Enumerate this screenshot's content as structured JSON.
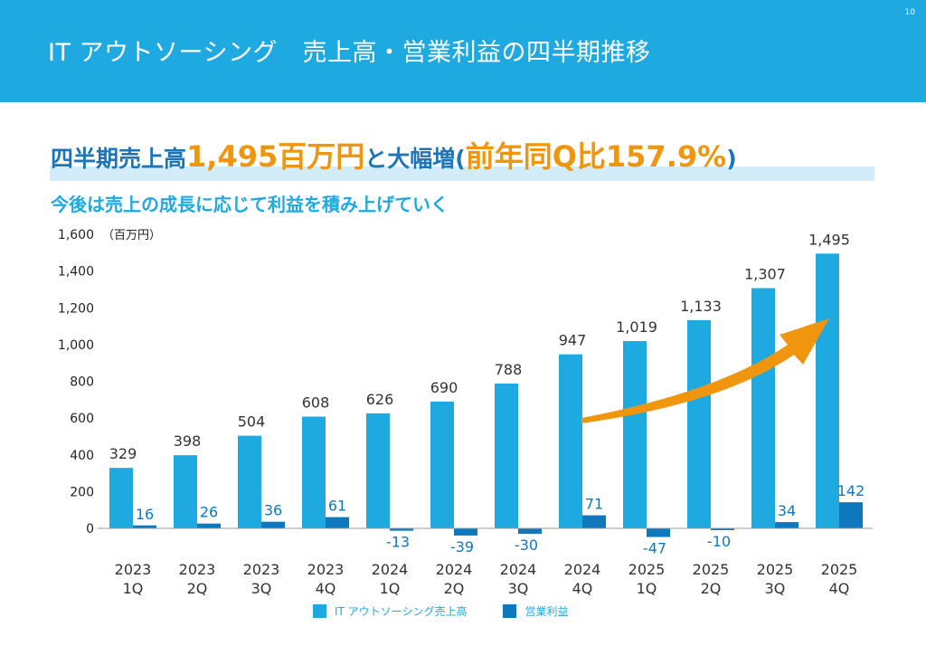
{
  "header": {
    "title": "IT アウトソーシング　売上高・営業利益の四半期推移",
    "page_number": "10"
  },
  "headline": {
    "part1": "四半期売上高",
    "highlight1": "1,495百万円",
    "part2": "と大幅増(",
    "highlight2": "前年同Q比157.9%",
    "part3": ")"
  },
  "subheadline": "今後は売上の成長に応じて利益を積み上げていく",
  "colors": {
    "header": "#1fa9e1",
    "revenue": "#1fa9e1",
    "profit": "#0e78bf",
    "arrow": "#f0960e"
  },
  "chart_data": {
    "type": "bar",
    "unit_label": "（百万円）",
    "ylim": [
      0,
      1600
    ],
    "yticks": [
      "0",
      "200",
      "400",
      "600",
      "800",
      "1,000",
      "1,200",
      "1,400",
      "1,600"
    ],
    "categories": [
      [
        "2023",
        "1Q"
      ],
      [
        "2023",
        "2Q"
      ],
      [
        "2023",
        "3Q"
      ],
      [
        "2023",
        "4Q"
      ],
      [
        "2024",
        "1Q"
      ],
      [
        "2024",
        "2Q"
      ],
      [
        "2024",
        "3Q"
      ],
      [
        "2024",
        "4Q"
      ],
      [
        "2025",
        "1Q"
      ],
      [
        "2025",
        "2Q"
      ],
      [
        "2025",
        "3Q"
      ],
      [
        "2025",
        "4Q"
      ]
    ],
    "series": [
      {
        "name": "IT アウトソーシング売上高",
        "values": [
          329,
          398,
          504,
          608,
          626,
          690,
          788,
          947,
          1019,
          1133,
          1307,
          1495
        ],
        "labels": [
          "329",
          "398",
          "504",
          "608",
          "626",
          "690",
          "788",
          "947",
          "1,019",
          "1,133",
          "1,307",
          "1,495"
        ]
      },
      {
        "name": "営業利益",
        "values": [
          16,
          26,
          36,
          61,
          -13,
          -39,
          -30,
          71,
          -47,
          -10,
          34,
          142
        ],
        "labels": [
          "16",
          "26",
          "36",
          "61",
          "-13",
          "-39",
          "-30",
          "71",
          "-47",
          "-10",
          "34",
          "142"
        ]
      }
    ],
    "legend_position": "bottom"
  }
}
